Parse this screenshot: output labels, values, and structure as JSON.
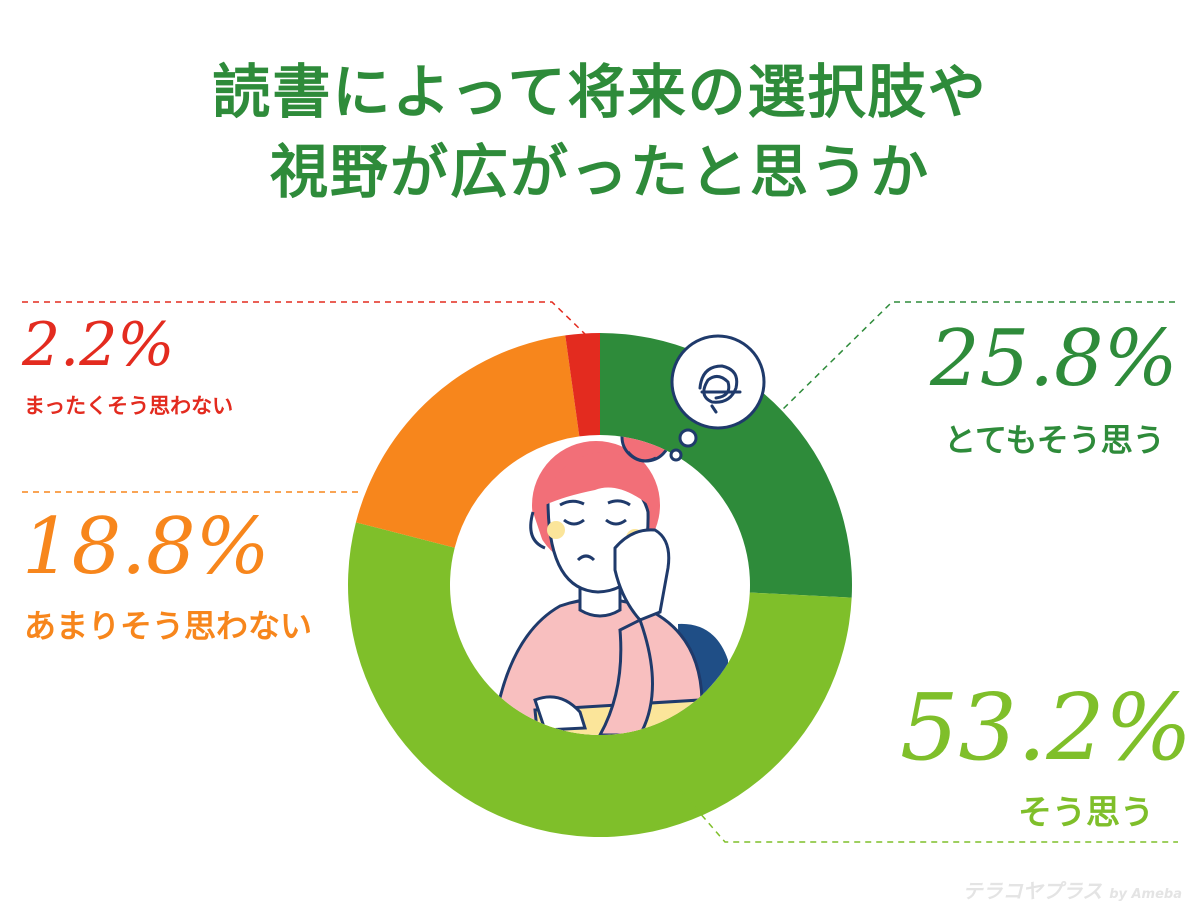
{
  "chart_data": {
    "type": "pie",
    "title": [
      "読書によって将来の選択肢や",
      "視野が広がったと思うか"
    ],
    "slices": [
      {
        "label": "とてもそう思う",
        "value": 25.8,
        "display": "25.8%",
        "color": "#2e8b3a"
      },
      {
        "label": "そう思う",
        "value": 53.2,
        "display": "53.2%",
        "color": "#7fbf2a"
      },
      {
        "label": "あまりそう思わない",
        "value": 18.8,
        "display": "18.8%",
        "color": "#f7861c"
      },
      {
        "label": "まったくそう思わない",
        "value": 2.2,
        "display": "2.2%",
        "color": "#e32b1f"
      }
    ],
    "donut": true
  },
  "watermark": {
    "main": "テラコヤプラス",
    "sub": "by Ameba"
  },
  "colors": {
    "title": "#2e8b3a"
  }
}
